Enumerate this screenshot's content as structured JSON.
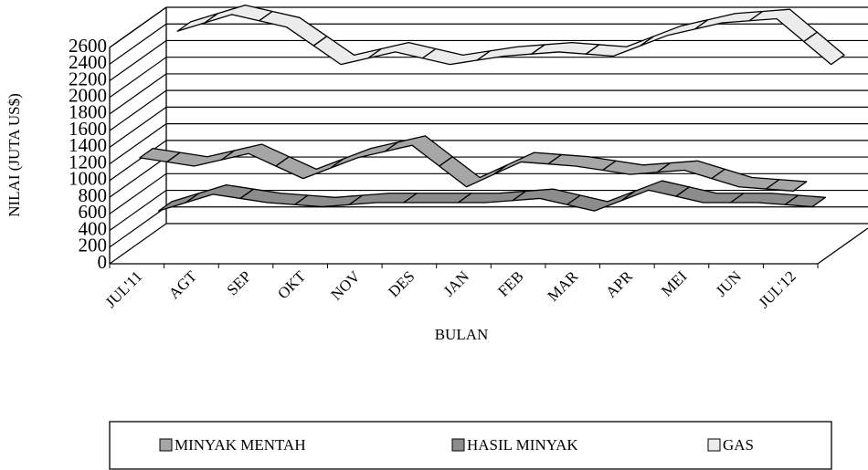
{
  "chart_data": {
    "type": "line3d",
    "x_label": "BULAN",
    "y_label": "NILAI (JUTA US$)",
    "categories": [
      "JUL'11",
      "AGT",
      "SEP",
      "OKT",
      "NOV",
      "DES",
      "JAN",
      "FEB",
      "MAR",
      "APR",
      "MEI",
      "JUN",
      "JUL'12"
    ],
    "series": [
      {
        "name": "MINYAK MENTAH",
        "color": "#a6a6a6",
        "values": [
          1250,
          1150,
          1300,
          1000,
          1250,
          1400,
          900,
          1200,
          1150,
          1050,
          1100,
          900,
          850
        ]
      },
      {
        "name": "HASIL MINYAK",
        "color": "#8c8c8c",
        "values": [
          450,
          650,
          550,
          500,
          550,
          550,
          550,
          600,
          450,
          700,
          550,
          550,
          500
        ]
      },
      {
        "name": "GAS",
        "color": "#ececec",
        "values": [
          2450,
          2650,
          2500,
          2050,
          2200,
          2050,
          2150,
          2200,
          2150,
          2400,
          2550,
          2600,
          2050
        ]
      }
    ],
    "ylim": [
      0,
      2600
    ],
    "yticks": [
      0,
      200,
      400,
      600,
      800,
      1000,
      1200,
      1400,
      1600,
      1800,
      2000,
      2200,
      2400,
      2600
    ],
    "grid": true,
    "legend": "bottom"
  }
}
